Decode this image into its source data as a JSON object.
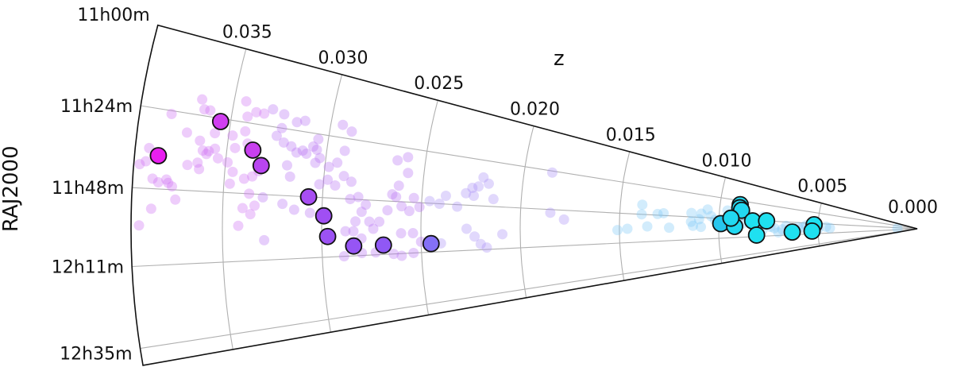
{
  "chart_data": {
    "type": "scatter",
    "projection": "polar-wedge",
    "title": "",
    "radial_axis": {
      "label": "z",
      "ticks": [
        "0.000",
        "0.005",
        "0.010",
        "0.015",
        "0.020",
        "0.025",
        "0.030",
        "0.035"
      ],
      "values": [
        0,
        0.005,
        0.01,
        0.015,
        0.02,
        0.025,
        0.03,
        0.035
      ],
      "range": [
        0,
        0.0396
      ]
    },
    "angular_axis": {
      "label": "RAJ2000",
      "ticks": [
        "11h00m",
        "11h24m",
        "11h48m",
        "12h11m",
        "12h35m"
      ],
      "tick_minutes_after_11h": [
        0,
        24,
        48,
        71,
        95
      ],
      "range_minutes_after_11h": [
        0,
        100
      ]
    },
    "grid": true,
    "series": [
      {
        "name": "highlighted",
        "marker": "large-circle-black-edge",
        "opacity": 1.0,
        "points": [
          {
            "z": 0.0355,
            "ra_min": 25,
            "color": "#d03ff0"
          },
          {
            "z": 0.0384,
            "ra_min": 38,
            "color": "#e91ef0"
          },
          {
            "z": 0.0337,
            "ra_min": 33,
            "color": "#c840ef"
          },
          {
            "z": 0.0332,
            "ra_min": 38,
            "color": "#b845f0"
          },
          {
            "z": 0.0307,
            "ra_min": 48,
            "color": "#a84ef2"
          },
          {
            "z": 0.0299,
            "ra_min": 55,
            "color": "#a04ff3"
          },
          {
            "z": 0.0297,
            "ra_min": 63,
            "color": "#9c52f3"
          },
          {
            "z": 0.0284,
            "ra_min": 67,
            "color": "#9655f4"
          },
          {
            "z": 0.0269,
            "ra_min": 67,
            "color": "#9058f5"
          },
          {
            "z": 0.0245,
            "ra_min": 67,
            "color": "#8470f6"
          },
          {
            "z": 0.009,
            "ra_min": 29,
            "color": "#22d8f0"
          },
          {
            "z": 0.009,
            "ra_min": 33,
            "color": "#22d8f0"
          },
          {
            "z": 0.0089,
            "ra_min": 36,
            "color": "#22d8f0"
          },
          {
            "z": 0.0099,
            "ra_min": 54,
            "color": "#27c6ee"
          },
          {
            "z": 0.0092,
            "ra_min": 57,
            "color": "#22d8f0"
          },
          {
            "z": 0.0094,
            "ra_min": 47,
            "color": "#22d8f0"
          },
          {
            "z": 0.0083,
            "ra_min": 49,
            "color": "#1fe0f0"
          },
          {
            "z": 0.0076,
            "ra_min": 48,
            "color": "#1fe0f0"
          },
          {
            "z": 0.0081,
            "ra_min": 69,
            "color": "#1fe0f0"
          },
          {
            "z": 0.0063,
            "ra_min": 66,
            "color": "#1fe0f0"
          },
          {
            "z": 0.0052,
            "ra_min": 51,
            "color": "#1fe0f0"
          },
          {
            "z": 0.0053,
            "ra_min": 65,
            "color": "#1fe0f0"
          }
        ]
      },
      {
        "name": "background",
        "marker": "small-circle-translucent",
        "opacity": 0.35,
        "points": [
          {
            "z": 0.038,
            "ra_min": 25
          },
          {
            "z": 0.0364,
            "ra_min": 22
          },
          {
            "z": 0.0371,
            "ra_min": 30
          },
          {
            "z": 0.0357,
            "ra_min": 29
          },
          {
            "z": 0.0364,
            "ra_min": 32
          },
          {
            "z": 0.0362,
            "ra_min": 35
          },
          {
            "z": 0.0359,
            "ra_min": 35
          },
          {
            "z": 0.0356,
            "ra_min": 34
          },
          {
            "z": 0.036,
            "ra_min": 36
          },
          {
            "z": 0.0364,
            "ra_min": 39
          },
          {
            "z": 0.0389,
            "ra_min": 36
          },
          {
            "z": 0.039,
            "ra_min": 40
          },
          {
            "z": 0.0393,
            "ra_min": 41
          },
          {
            "z": 0.0386,
            "ra_min": 45
          },
          {
            "z": 0.0383,
            "ra_min": 46
          },
          {
            "z": 0.0378,
            "ra_min": 46
          },
          {
            "z": 0.0379,
            "ra_min": 45
          },
          {
            "z": 0.0376,
            "ra_min": 47
          },
          {
            "z": 0.0374,
            "ra_min": 51
          },
          {
            "z": 0.0386,
            "ra_min": 54
          },
          {
            "z": 0.0392,
            "ra_min": 59
          },
          {
            "z": 0.0369,
            "ra_min": 40
          },
          {
            "z": 0.0363,
            "ra_min": 41
          },
          {
            "z": 0.0347,
            "ra_min": 45
          },
          {
            "z": 0.034,
            "ra_min": 43
          },
          {
            "z": 0.0336,
            "ra_min": 42
          },
          {
            "z": 0.0333,
            "ra_min": 40
          },
          {
            "z": 0.0337,
            "ra_min": 48
          },
          {
            "z": 0.034,
            "ra_min": 53
          },
          {
            "z": 0.0336,
            "ra_min": 55
          },
          {
            "z": 0.0334,
            "ra_min": 52
          },
          {
            "z": 0.033,
            "ra_min": 49
          },
          {
            "z": 0.0342,
            "ra_min": 59
          },
          {
            "z": 0.0329,
            "ra_min": 64
          },
          {
            "z": 0.0319,
            "ra_min": 37
          },
          {
            "z": 0.0317,
            "ra_min": 41
          },
          {
            "z": 0.032,
            "ra_min": 51
          },
          {
            "z": 0.0314,
            "ra_min": 53
          },
          {
            "z": 0.0306,
            "ra_min": 54
          },
          {
            "z": 0.0302,
            "ra_min": 43
          },
          {
            "z": 0.0312,
            "ra_min": 31
          },
          {
            "z": 0.0305,
            "ra_min": 30
          },
          {
            "z": 0.0303,
            "ra_min": 33
          },
          {
            "z": 0.0298,
            "ra_min": 36
          },
          {
            "z": 0.0294,
            "ra_min": 34
          },
          {
            "z": 0.0291,
            "ra_min": 29
          },
          {
            "z": 0.0294,
            "ra_min": 19
          },
          {
            "z": 0.0289,
            "ra_min": 21
          },
          {
            "z": 0.0324,
            "ra_min": 19
          },
          {
            "z": 0.0317,
            "ra_min": 21
          },
          {
            "z": 0.0313,
            "ra_min": 20
          },
          {
            "z": 0.0324,
            "ra_min": 24
          },
          {
            "z": 0.0326,
            "ra_min": 27
          },
          {
            "z": 0.0322,
            "ra_min": 29
          },
          {
            "z": 0.0318,
            "ra_min": 30
          },
          {
            "z": 0.0315,
            "ra_min": 32
          },
          {
            "z": 0.031,
            "ra_min": 32
          },
          {
            "z": 0.0307,
            "ra_min": 29
          },
          {
            "z": 0.0305,
            "ra_min": 26
          },
          {
            "z": 0.0305,
            "ra_min": 35
          },
          {
            "z": 0.0342,
            "ra_min": 22
          },
          {
            "z": 0.0338,
            "ra_min": 20
          },
          {
            "z": 0.0334,
            "ra_min": 20
          },
          {
            "z": 0.0342,
            "ra_min": 27
          },
          {
            "z": 0.034,
            "ra_min": 31
          },
          {
            "z": 0.0346,
            "ra_min": 33
          },
          {
            "z": 0.0348,
            "ra_min": 29
          },
          {
            "z": 0.0354,
            "ra_min": 37
          },
          {
            "z": 0.0349,
            "ra_min": 38
          },
          {
            "z": 0.0346,
            "ra_min": 41
          },
          {
            "z": 0.0361,
            "ra_min": 22
          },
          {
            "z": 0.0366,
            "ra_min": 19
          },
          {
            "z": 0.0344,
            "ra_min": 17
          },
          {
            "z": 0.033,
            "ra_min": 18
          },
          {
            "z": 0.0298,
            "ra_min": 41
          },
          {
            "z": 0.0294,
            "ra_min": 43
          },
          {
            "z": 0.029,
            "ra_min": 39
          },
          {
            "z": 0.0286,
            "ra_min": 41
          },
          {
            "z": 0.0286,
            "ra_min": 48
          },
          {
            "z": 0.0282,
            "ra_min": 47
          },
          {
            "z": 0.0278,
            "ra_min": 50
          },
          {
            "z": 0.028,
            "ra_min": 53
          },
          {
            "z": 0.0283,
            "ra_min": 57
          },
          {
            "z": 0.0276,
            "ra_min": 57
          },
          {
            "z": 0.0274,
            "ra_min": 60
          },
          {
            "z": 0.0271,
            "ra_min": 57
          },
          {
            "z": 0.0267,
            "ra_min": 52
          },
          {
            "z": 0.0265,
            "ra_min": 45
          },
          {
            "z": 0.0262,
            "ra_min": 41
          },
          {
            "z": 0.0258,
            "ra_min": 35
          },
          {
            "z": 0.0259,
            "ra_min": 28
          },
          {
            "z": 0.0264,
            "ra_min": 30
          },
          {
            "z": 0.0263,
            "ra_min": 46
          },
          {
            "z": 0.026,
            "ra_min": 50
          },
          {
            "z": 0.0256,
            "ra_min": 52
          },
          {
            "z": 0.0254,
            "ra_min": 46
          },
          {
            "z": 0.0251,
            "ra_min": 50
          },
          {
            "z": 0.0246,
            "ra_min": 47
          },
          {
            "z": 0.0241,
            "ra_min": 48
          },
          {
            "z": 0.0238,
            "ra_min": 44
          },
          {
            "z": 0.0232,
            "ra_min": 49
          },
          {
            "z": 0.0228,
            "ra_min": 42
          },
          {
            "z": 0.0225,
            "ra_min": 39
          },
          {
            "z": 0.0222,
            "ra_min": 38
          },
          {
            "z": 0.022,
            "ra_min": 33
          },
          {
            "z": 0.0217,
            "ra_min": 36
          },
          {
            "z": 0.0214,
            "ra_min": 44
          },
          {
            "z": 0.0227,
            "ra_min": 60
          },
          {
            "z": 0.0223,
            "ra_min": 64
          },
          {
            "z": 0.022,
            "ra_min": 68
          },
          {
            "z": 0.0217,
            "ra_min": 70
          },
          {
            "z": 0.0209,
            "ra_min": 63
          },
          {
            "z": 0.0224,
            "ra_min": 43
          },
          {
            "z": 0.0244,
            "ra_min": 67
          },
          {
            "z": 0.024,
            "ra_min": 67
          },
          {
            "z": 0.025,
            "ra_min": 66
          },
          {
            "z": 0.0254,
            "ra_min": 71
          },
          {
            "z": 0.026,
            "ra_min": 72
          },
          {
            "z": 0.0264,
            "ra_min": 71
          },
          {
            "z": 0.0273,
            "ra_min": 70
          },
          {
            "z": 0.028,
            "ra_min": 70
          },
          {
            "z": 0.0289,
            "ra_min": 71
          },
          {
            "z": 0.028,
            "ra_min": 64
          },
          {
            "z": 0.0288,
            "ra_min": 61
          },
          {
            "z": 0.0284,
            "ra_min": 61
          },
          {
            "z": 0.0254,
            "ra_min": 62
          },
          {
            "z": 0.026,
            "ra_min": 62
          },
          {
            "z": 0.0186,
            "ra_min": 25
          },
          {
            "z": 0.0178,
            "ra_min": 54
          },
          {
            "z": 0.0185,
            "ra_min": 50
          }
        ]
      },
      {
        "name": "background-low-z",
        "marker": "small-circle-translucent",
        "opacity": 0.35,
        "points": [
          {
            "z": 0.0139,
            "ra_min": 40
          },
          {
            "z": 0.0139,
            "ra_min": 48
          },
          {
            "z": 0.0131,
            "ra_min": 47
          },
          {
            "z": 0.0128,
            "ra_min": 46
          },
          {
            "z": 0.0114,
            "ra_min": 44
          },
          {
            "z": 0.0109,
            "ra_min": 44
          },
          {
            "z": 0.0113,
            "ra_min": 57
          },
          {
            "z": 0.0109,
            "ra_min": 58
          },
          {
            "z": 0.0146,
            "ra_min": 60
          },
          {
            "z": 0.0151,
            "ra_min": 61
          },
          {
            "z": 0.0136,
            "ra_min": 58
          },
          {
            "z": 0.0125,
            "ra_min": 59
          },
          {
            "z": 0.0106,
            "ra_min": 39
          },
          {
            "z": 0.0104,
            "ra_min": 46
          },
          {
            "z": 0.0102,
            "ra_min": 50
          },
          {
            "z": 0.0096,
            "ra_min": 38
          },
          {
            "z": 0.0092,
            "ra_min": 40
          },
          {
            "z": 0.0086,
            "ra_min": 41
          },
          {
            "z": 0.0078,
            "ra_min": 42
          },
          {
            "z": 0.0072,
            "ra_min": 59
          },
          {
            "z": 0.0068,
            "ra_min": 61
          },
          {
            "z": 0.0062,
            "ra_min": 60
          },
          {
            "z": 0.0058,
            "ra_min": 58
          },
          {
            "z": 0.0046,
            "ra_min": 55
          },
          {
            "z": 0.011,
            "ra_min": 50
          },
          {
            "z": 0.0114,
            "ra_min": 53
          },
          {
            "z": 0.0078,
            "ra_min": 62
          },
          {
            "z": 0.001,
            "ra_min": 56
          },
          {
            "z": 0.007,
            "ra_min": 66
          },
          {
            "z": 0.005,
            "ra_min": 60
          },
          {
            "z": 0.01,
            "ra_min": 52
          },
          {
            "z": 0.0095,
            "ra_min": 55
          },
          {
            "z": 0.0088,
            "ra_min": 53
          },
          {
            "z": 0.008,
            "ra_min": 55
          },
          {
            "z": 0.0074,
            "ra_min": 57
          },
          {
            "z": 0.0066,
            "ra_min": 55
          },
          {
            "z": 0.006,
            "ra_min": 57
          },
          {
            "z": 0.0056,
            "ra_min": 53
          },
          {
            "z": 0.0052,
            "ra_min": 56
          },
          {
            "z": 0.0044,
            "ra_min": 58
          }
        ]
      }
    ]
  },
  "axes": {
    "radial_label": "z",
    "angular_label": "RAJ2000",
    "radial_ticks": [
      "0.000",
      "0.005",
      "0.010",
      "0.015",
      "0.020",
      "0.025",
      "0.030",
      "0.035"
    ],
    "angular_ticks": [
      "11h00m",
      "11h24m",
      "11h48m",
      "12h11m",
      "12h35m"
    ]
  },
  "style": {
    "frame_color": "#111111",
    "grid_color": "#b0b0b0",
    "faint_high_z_color": "#cf6ff3",
    "faint_mid_z_color": "#a890f5",
    "faint_low_z_color": "#7ec8f5"
  }
}
